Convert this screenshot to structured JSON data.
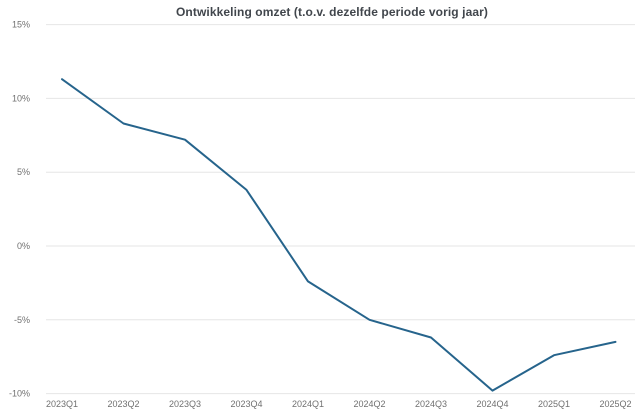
{
  "title": "Ontwikkeling omzet (t.o.v. dezelfde periode vorig jaar)",
  "colors": {
    "line": "#26648c",
    "grid": "#e6e6e6",
    "axis_label": "#707070",
    "title": "#41464c",
    "background": "#ffffff"
  },
  "chart_data": {
    "type": "line",
    "title": "Ontwikkeling omzet (t.o.v. dezelfde periode vorig jaar)",
    "categories": [
      "2023Q1",
      "2023Q2",
      "2023Q3",
      "2023Q4",
      "2024Q1",
      "2024Q2",
      "2024Q3",
      "2024Q4",
      "2025Q1",
      "2025Q2"
    ],
    "series": [
      {
        "name": "Ontwikkeling omzet",
        "values": [
          11.3,
          8.3,
          7.2,
          3.8,
          -2.4,
          -5.0,
          -6.2,
          -9.8,
          -7.4,
          -6.5
        ]
      }
    ],
    "xlabel": "",
    "ylabel": "",
    "ylim": [
      -10,
      15
    ],
    "yticks": [
      {
        "value": -10,
        "label": "-10%"
      },
      {
        "value": -5,
        "label": "-5%"
      },
      {
        "value": 0,
        "label": "0%"
      },
      {
        "value": 5,
        "label": "5%"
      },
      {
        "value": 10,
        "label": "10%"
      },
      {
        "value": 15,
        "label": "15%"
      }
    ],
    "grid": "horizontal",
    "legend": "none"
  }
}
